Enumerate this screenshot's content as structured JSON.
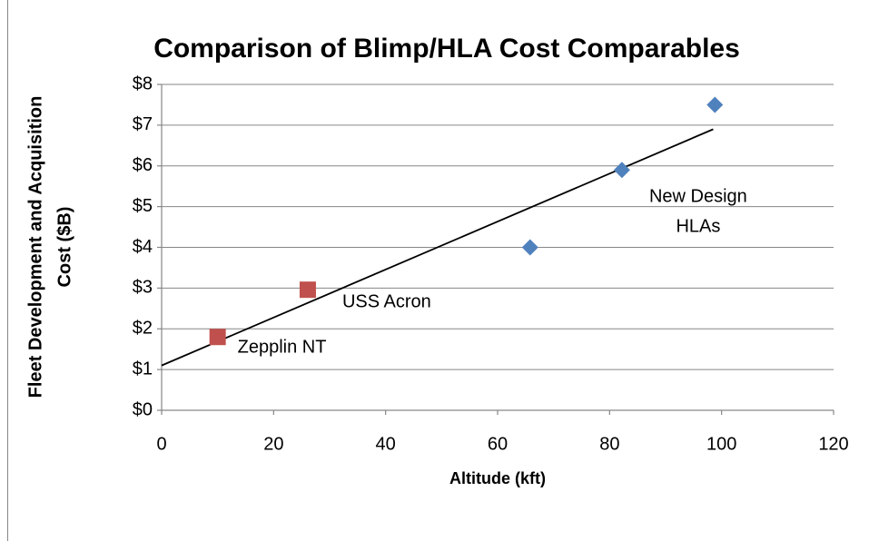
{
  "chart_data": {
    "type": "scatter",
    "title": "Comparison of Blimp/HLA Cost Comparables",
    "x_label": "Altitude (kft)",
    "y_label": [
      "Fleet Development and Acquisition",
      "Cost ($B)"
    ],
    "series": [
      {
        "color": "#4f81bd",
        "marker": "diamond",
        "x": [
          65.8,
          82.2,
          98.8
        ],
        "values": [
          4.0,
          5.9,
          7.5
        ]
      },
      {
        "color": "#c0504d",
        "marker": "square",
        "x": [
          10,
          26.1
        ],
        "values": [
          1.8,
          2.96
        ]
      }
    ],
    "trendline": {
      "color": "#000000",
      "x": [
        0,
        98.5
      ],
      "values": [
        1.1,
        6.9
      ]
    },
    "annotations": [
      {
        "text": [
          "Zepplin NT"
        ],
        "series": 1,
        "point": 0
      },
      {
        "text": [
          "USS Acron"
        ],
        "series": 1,
        "point": 1
      },
      {
        "text": [
          "New Design",
          "HLAs"
        ],
        "series": 0,
        "point": 1
      }
    ],
    "xlim": [
      0,
      120
    ],
    "xticks": [
      0,
      20,
      40,
      60,
      80,
      100,
      120
    ],
    "ylim": [
      0,
      8
    ],
    "yticks": [
      {
        "value": 0,
        "label": "$0"
      },
      {
        "value": 1,
        "label": "$1"
      },
      {
        "value": 2,
        "label": "$2"
      },
      {
        "value": 3,
        "label": "$3"
      },
      {
        "value": 4,
        "label": "$4"
      },
      {
        "value": 5,
        "label": "$5"
      },
      {
        "value": 6,
        "label": "$6"
      },
      {
        "value": 7,
        "label": "$7"
      },
      {
        "value": 8,
        "label": "$8"
      }
    ],
    "grid": true
  }
}
